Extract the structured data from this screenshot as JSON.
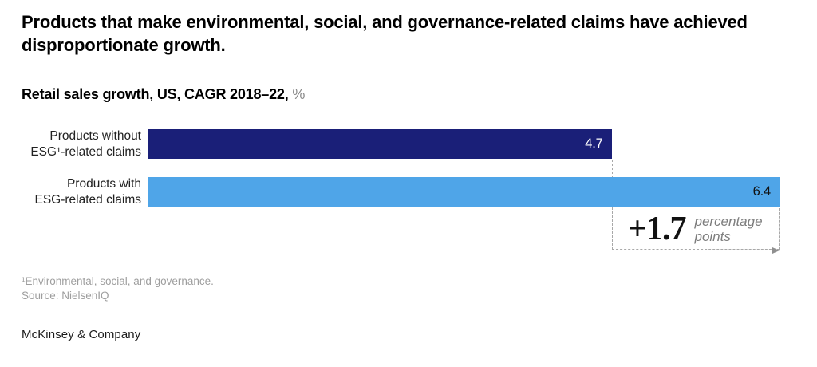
{
  "header": {
    "title": "Products that make environmental, social, and governance-related claims have achieved disproportionate growth.",
    "subtitle_main": "Retail sales growth, US, CAGR 2018–22,",
    "subtitle_unit": "%"
  },
  "chart_data": {
    "type": "bar",
    "orientation": "horizontal",
    "title": "Retail sales growth, US, CAGR 2018–22, %",
    "categories": [
      "Products without ESG¹-related claims",
      "Products with ESG-related claims"
    ],
    "values": [
      4.7,
      6.4
    ],
    "xlim": [
      0,
      6.4
    ],
    "grid": false,
    "legend": false,
    "bar_colors": [
      "#1a1f78",
      "#4fa5e8"
    ],
    "value_label_colors": [
      "#ffffff",
      "#111111"
    ],
    "rows": [
      {
        "label_line1": "Products without",
        "label_line2": "ESG¹-related claims",
        "value": 4.7,
        "value_label": "4.7"
      },
      {
        "label_line1": "Products with",
        "label_line2": "ESG-related claims",
        "value": 6.4,
        "value_label": "6.4"
      }
    ],
    "annotation": {
      "delta_label": "+1.7",
      "unit_line1": "percentage",
      "unit_line2": "points"
    }
  },
  "footnotes": {
    "note1": "¹Environmental, social, and governance.",
    "note2": "Source: NielsenIQ"
  },
  "footer": {
    "logo": "McKinsey & Company"
  }
}
